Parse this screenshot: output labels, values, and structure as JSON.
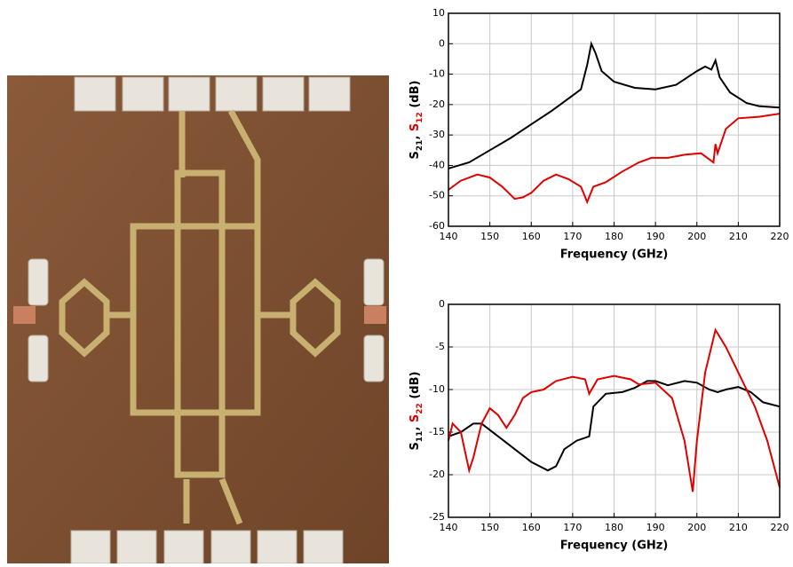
{
  "chart_data": [
    {
      "type": "line",
      "xlabel": "Frequency (GHz)",
      "ylabel_parts": [
        {
          "text": "S",
          "color": "#000000"
        },
        {
          "text": "21",
          "color": "#000000",
          "sub": true
        },
        {
          "text": ", ",
          "color": "#000000"
        },
        {
          "text": "S",
          "color": "#e00000"
        },
        {
          "text": "12",
          "color": "#e00000",
          "sub": true
        },
        {
          "text": " (dB)",
          "color": "#000000"
        }
      ],
      "xlim": [
        140,
        220
      ],
      "ylim": [
        -60,
        10
      ],
      "xticks": [
        140,
        150,
        160,
        170,
        180,
        190,
        200,
        210,
        220
      ],
      "yticks": [
        -60,
        -50,
        -40,
        -30,
        -20,
        -10,
        0,
        10
      ],
      "grid": true,
      "series": [
        {
          "color": "#000000",
          "x": [
            140,
            145,
            150,
            155,
            160,
            165,
            170,
            172,
            173.5,
            174.5,
            175.5,
            177,
            180,
            185,
            190,
            195,
            200,
            202,
            203.5,
            204.5,
            205.5,
            208,
            212,
            215,
            220
          ],
          "values": [
            -41,
            -39,
            -35,
            -31,
            -26.5,
            -22,
            -17,
            -15,
            -7,
            0,
            -3,
            -9,
            -12.5,
            -14.5,
            -15,
            -13.5,
            -9,
            -7.5,
            -8.5,
            -5.5,
            -11,
            -16,
            -19.5,
            -20.5,
            -21
          ]
        },
        {
          "color": "#e00000",
          "x": [
            140,
            143,
            147,
            150,
            153,
            156,
            158,
            160,
            163,
            166,
            169,
            172,
            173.5,
            175,
            178,
            182,
            186,
            189,
            193,
            197,
            201,
            203,
            204,
            204.5,
            205,
            207,
            210,
            215,
            220
          ],
          "values": [
            -48,
            -45,
            -43,
            -44,
            -47,
            -51,
            -50.5,
            -49,
            -45,
            -43,
            -44.5,
            -47,
            -52,
            -47,
            -45.5,
            -42,
            -39,
            -37.5,
            -37.5,
            -36.5,
            -36,
            -38,
            -39,
            -33,
            -36,
            -28,
            -24.5,
            -24,
            -23
          ]
        }
      ]
    },
    {
      "type": "line",
      "xlabel": "Frequency (GHz)",
      "ylabel_parts": [
        {
          "text": "S",
          "color": "#000000"
        },
        {
          "text": "11",
          "color": "#000000",
          "sub": true
        },
        {
          "text": ", ",
          "color": "#000000"
        },
        {
          "text": "S",
          "color": "#e00000"
        },
        {
          "text": "22",
          "color": "#e00000",
          "sub": true
        },
        {
          "text": " (dB)",
          "color": "#000000"
        }
      ],
      "xlim": [
        140,
        220
      ],
      "ylim": [
        -25,
        0
      ],
      "xticks": [
        140,
        150,
        160,
        170,
        180,
        190,
        200,
        210,
        220
      ],
      "yticks": [
        -25,
        -20,
        -15,
        -10,
        -5,
        0
      ],
      "grid": true,
      "series": [
        {
          "color": "#000000",
          "x": [
            140,
            143,
            146,
            148,
            152,
            156,
            160,
            164,
            166,
            168,
            171,
            174,
            175,
            178,
            182,
            185,
            188,
            190,
            193,
            197,
            200,
            203,
            205,
            207,
            210,
            213,
            216,
            220
          ],
          "values": [
            -15.5,
            -15,
            -14,
            -14,
            -15.5,
            -17,
            -18.5,
            -19.5,
            -19,
            -17,
            -16,
            -15.5,
            -12,
            -10.5,
            -10.3,
            -9.8,
            -9,
            -9,
            -9.5,
            -9,
            -9.2,
            -10,
            -10.3,
            -10,
            -9.7,
            -10.3,
            -11.5,
            -12
          ]
        },
        {
          "color": "#e00000",
          "x": [
            140,
            141,
            143,
            145,
            146,
            148,
            150,
            152,
            154,
            156,
            158,
            160,
            163,
            166,
            170,
            173,
            174,
            176,
            180,
            184,
            186,
            190,
            194,
            197,
            199,
            200,
            202,
            204,
            204.5,
            207,
            210,
            214,
            217,
            220
          ],
          "values": [
            -16,
            -14,
            -15,
            -19.5,
            -18,
            -14,
            -12.2,
            -13,
            -14.5,
            -13,
            -11,
            -10.3,
            -10,
            -9,
            -8.5,
            -8.8,
            -10.5,
            -8.8,
            -8.4,
            -8.8,
            -9.4,
            -9.2,
            -11,
            -16,
            -22,
            -16,
            -8,
            -4,
            -3,
            -5,
            -8,
            -12,
            -16,
            -21.5
          ]
        }
      ]
    }
  ]
}
